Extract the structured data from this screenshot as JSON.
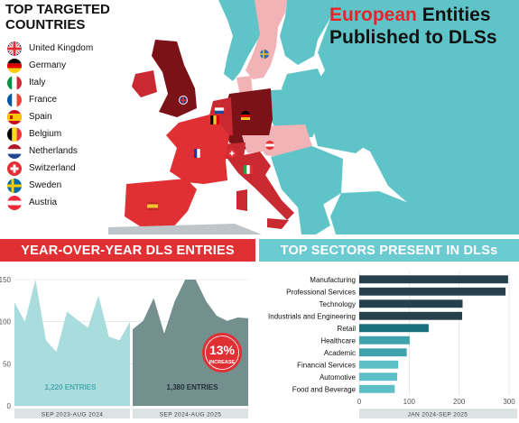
{
  "header": {
    "left_title_line1": "TOP TARGETED",
    "left_title_line2": "COUNTRIES",
    "right_title_accent": "European",
    "right_title_rest": " Entities",
    "right_title_line2": "Published to DLSs"
  },
  "legend": {
    "countries": [
      {
        "name": "United Kingdom",
        "flag": "uk-flag-icon"
      },
      {
        "name": "Germany",
        "flag": "germany-flag-icon"
      },
      {
        "name": "Italy",
        "flag": "italy-flag-icon"
      },
      {
        "name": "France",
        "flag": "france-flag-icon"
      },
      {
        "name": "Spain",
        "flag": "spain-flag-icon"
      },
      {
        "name": "Belgium",
        "flag": "belgium-flag-icon"
      },
      {
        "name": "Netherlands",
        "flag": "netherlands-flag-icon"
      },
      {
        "name": "Switzerland",
        "flag": "switzerland-flag-icon"
      },
      {
        "name": "Sweden",
        "flag": "sweden-flag-icon"
      },
      {
        "name": "Austria",
        "flag": "austria-flag-icon"
      }
    ]
  },
  "colors": {
    "red": "#e03034",
    "teal": "#6ccbd0",
    "dark_navy": "#26404d",
    "dark_red": "#7a1218",
    "mid_red": "#c92a31",
    "pink": "#f2b3b6",
    "light_teal": "#a9dfe1",
    "dark_teal_area": "#74908e",
    "light_teal_area": "#a8dcdd",
    "map_teal": "#5fc4c8"
  },
  "sections": {
    "yoy_title": "YEAR-OVER-YEAR DLS ENTRIES",
    "sectors_title": "TOP SECTORS PRESENT IN DLSs"
  },
  "yoy": {
    "period1_label": "SEP 2023-AUG 2024",
    "period2_label": "SEP 2024-AUG 2025",
    "period1_total": "1,220 ENTRIES",
    "period2_total": "1,380 ENTRIES",
    "badge_value": "13%",
    "badge_label": "INCREASE"
  },
  "sectors": {
    "axis_label": "JAN 2024-SEP 2025"
  },
  "chart_data": [
    {
      "type": "area",
      "title": "YEAR-OVER-YEAR DLS ENTRIES",
      "ylim": [
        0,
        150
      ],
      "yticks": [
        0,
        50,
        100,
        150
      ],
      "grid": true,
      "series": [
        {
          "name": "SEP 2023-AUG 2024",
          "values": [
            123,
            100,
            150,
            78,
            64,
            112,
            102,
            93,
            131,
            82,
            78,
            100
          ]
        },
        {
          "name": "SEP 2024-AUG 2025",
          "values": [
            91,
            101,
            128,
            86,
            124,
            150,
            150,
            124,
            107,
            101,
            105,
            104
          ]
        }
      ]
    },
    {
      "type": "bar",
      "orientation": "horizontal",
      "title": "TOP SECTORS PRESENT IN DLSs",
      "xlabel": "JAN 2024-SEP 2025",
      "xlim": [
        0,
        300
      ],
      "xticks": [
        0,
        100,
        200,
        300
      ],
      "grid": true,
      "categories": [
        "Manufacturing",
        "Professional Services",
        "Technology",
        "Industrials and Engineering",
        "Retail",
        "Healthcare",
        "Academic",
        "Financial Services",
        "Automotive",
        "Food and Beverage"
      ],
      "values": [
        298,
        293,
        207,
        206,
        139,
        101,
        95,
        78,
        76,
        71
      ],
      "colors": [
        "#26404d",
        "#26404d",
        "#26404d",
        "#26404d",
        "#17707c",
        "#3fa3ad",
        "#3fa3ad",
        "#5bbfc5",
        "#5bbfc5",
        "#5bbfc5"
      ]
    }
  ]
}
